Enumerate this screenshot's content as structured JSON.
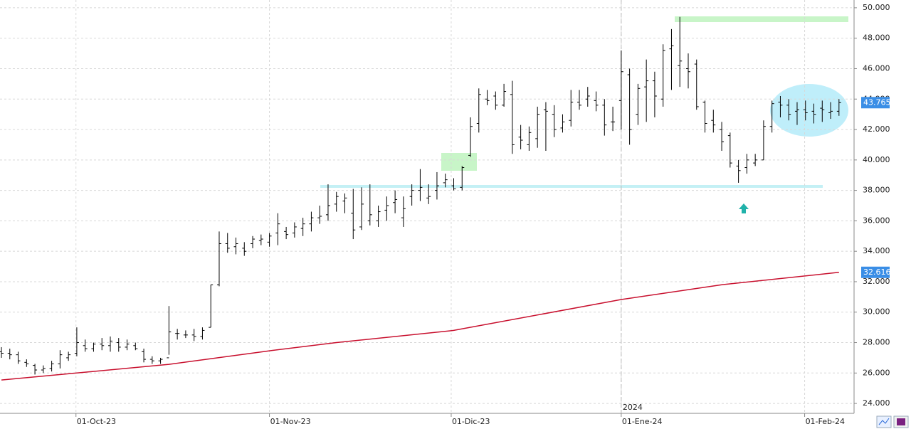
{
  "chart_data": {
    "type": "ohlc",
    "bar_color": "#000000",
    "grid": true,
    "ylim": [
      23.35,
      50.51
    ],
    "yticks": [
      {
        "value": 24,
        "label": "24.000"
      },
      {
        "value": 26,
        "label": "26.000"
      },
      {
        "value": 28,
        "label": "28.000"
      },
      {
        "value": 30,
        "label": "30.000"
      },
      {
        "value": 32,
        "label": "32.000"
      },
      {
        "value": 34,
        "label": "34.000"
      },
      {
        "value": 36,
        "label": "36.000"
      },
      {
        "value": 38,
        "label": "38.000"
      },
      {
        "value": 40,
        "label": "40.000"
      },
      {
        "value": 42,
        "label": "42.000"
      },
      {
        "value": 44,
        "label": "44.000"
      },
      {
        "value": 46,
        "label": "46.000"
      },
      {
        "value": 48,
        "label": "48.000"
      },
      {
        "value": 50,
        "label": "50.000"
      }
    ],
    "xlim": [
      -0.17,
      101.8
    ],
    "xticks": [
      {
        "value": 8.9,
        "label": "01-Oct-23"
      },
      {
        "value": 32,
        "label": "01-Nov-23"
      },
      {
        "value": 53.7,
        "label": "01-Dic-23"
      },
      {
        "value": 74,
        "label": "01-Ene-24"
      },
      {
        "value": 95.9,
        "label": "01-Feb-24"
      }
    ],
    "year_marker": {
      "value": 74,
      "label": "2024"
    },
    "ohlc": {
      "open": [
        27.4,
        27.3,
        27.2,
        26.7,
        26.5,
        26.2,
        26.3,
        26.6,
        27.0,
        27.3,
        27.8,
        27.6,
        27.9,
        27.8,
        28.0,
        27.7,
        27.8,
        27.4,
        26.9,
        26.8,
        27.0,
        28.6,
        28.5,
        28.5,
        28.4,
        29.0,
        31.8,
        34.5,
        34.3,
        34.2,
        34.5,
        34.7,
        34.6,
        35.2,
        35.3,
        35.2,
        35.5,
        35.8,
        36.2,
        36.4,
        37.1,
        37.3,
        36.5,
        35.6,
        36.0,
        36.0,
        36.7,
        37.2,
        36.2,
        37.6,
        38.0,
        37.5,
        38.0,
        38.5,
        38.3,
        38.2,
        40.3,
        42.4,
        44.0,
        44.2,
        43.6,
        44.3,
        41.5,
        41.0,
        41.4,
        43.3,
        43.0,
        42.1,
        42.6,
        43.8,
        44.0,
        43.9,
        43.6,
        42.5,
        43.9,
        45.6,
        43.0,
        44.8,
        45.2,
        44.0,
        47.3,
        46.2,
        46.0,
        46.3,
        43.8,
        42.6,
        42.0,
        41.6,
        39.6,
        39.5,
        39.8,
        40.0,
        42.2,
        43.8,
        43.6,
        43.2,
        43.3,
        43.2,
        43.4,
        43.1,
        43.2
      ],
      "high": [
        27.7,
        27.6,
        27.4,
        26.9,
        26.6,
        26.5,
        26.8,
        27.5,
        27.4,
        29.0,
        28.2,
        28.0,
        28.3,
        28.4,
        28.3,
        28.2,
        28.0,
        27.6,
        27.1,
        27.0,
        30.4,
        28.9,
        28.8,
        28.9,
        29.0,
        31.8,
        35.3,
        35.2,
        34.9,
        34.6,
        35.0,
        35.1,
        35.2,
        36.5,
        35.6,
        35.9,
        36.2,
        36.6,
        37.0,
        38.4,
        37.9,
        37.8,
        38.1,
        38.2,
        38.4,
        37.0,
        37.6,
        38.0,
        37.6,
        38.4,
        39.4,
        38.4,
        39.2,
        39.1,
        38.8,
        39.6,
        42.8,
        44.7,
        44.6,
        44.5,
        45.0,
        45.2,
        42.3,
        42.2,
        43.5,
        43.8,
        43.6,
        43.0,
        44.6,
        44.6,
        44.8,
        44.5,
        44.0,
        43.5,
        47.2,
        46.0,
        45.0,
        46.6,
        45.8,
        47.6,
        48.6,
        49.4,
        47.0,
        46.6,
        43.9,
        43.3,
        42.5,
        41.8,
        40.0,
        40.4,
        40.4,
        42.6,
        43.9,
        44.2,
        44.0,
        43.8,
        43.9,
        43.7,
        43.9,
        43.8,
        44.0
      ],
      "low": [
        27.0,
        26.9,
        26.6,
        26.4,
        25.9,
        26.0,
        26.1,
        26.3,
        26.8,
        27.1,
        27.4,
        27.4,
        27.5,
        27.4,
        27.4,
        27.5,
        27.5,
        26.7,
        26.6,
        26.6,
        27.2,
        28.2,
        28.3,
        28.1,
        28.2,
        29.0,
        31.7,
        33.9,
        33.8,
        33.7,
        34.2,
        34.4,
        34.3,
        34.4,
        34.8,
        34.9,
        35.0,
        35.3,
        35.8,
        36.0,
        36.6,
        36.5,
        34.8,
        35.4,
        35.7,
        35.6,
        36.0,
        36.5,
        35.6,
        37.0,
        37.3,
        37.1,
        37.4,
        38.2,
        38.0,
        38.0,
        40.2,
        41.8,
        43.6,
        43.3,
        43.5,
        40.4,
        40.7,
        40.6,
        40.8,
        40.6,
        41.5,
        41.8,
        42.2,
        43.3,
        43.5,
        43.2,
        41.6,
        41.9,
        42.0,
        41.0,
        42.3,
        42.5,
        42.8,
        43.5,
        44.6,
        44.8,
        44.7,
        43.3,
        41.8,
        41.8,
        40.6,
        39.5,
        38.5,
        39.1,
        39.6,
        40.0,
        41.8,
        42.8,
        42.6,
        42.3,
        42.6,
        42.4,
        42.5,
        42.7,
        42.9
      ],
      "close": [
        27.3,
        27.2,
        26.8,
        26.6,
        26.2,
        26.3,
        26.6,
        27.2,
        27.2,
        28.0,
        27.6,
        27.9,
        27.8,
        28.1,
        27.7,
        27.9,
        27.6,
        26.9,
        26.8,
        26.9,
        28.7,
        28.6,
        28.5,
        28.4,
        28.8,
        31.8,
        34.5,
        34.2,
        34.5,
        34.0,
        34.8,
        34.8,
        35.0,
        35.8,
        35.1,
        35.6,
        35.8,
        36.2,
        36.3,
        37.0,
        37.6,
        37.5,
        35.4,
        37.1,
        36.4,
        36.6,
        37.0,
        37.4,
        36.8,
        38.0,
        38.2,
        37.6,
        38.3,
        38.7,
        38.1,
        39.5,
        42.2,
        44.3,
        43.9,
        43.6,
        44.5,
        41.0,
        41.3,
        41.8,
        43.0,
        43.2,
        42.0,
        42.5,
        43.8,
        43.6,
        44.2,
        43.6,
        42.3,
        42.5,
        45.8,
        42.0,
        44.7,
        45.2,
        44.2,
        47.2,
        47.5,
        46.5,
        45.8,
        43.5,
        42.4,
        42.3,
        41.2,
        39.8,
        39.3,
        40.0,
        40.0,
        42.2,
        43.7,
        43.6,
        43.0,
        43.3,
        43.1,
        43.0,
        43.3,
        43.2,
        43.765
      ]
    },
    "ma": {
      "color": "#c8102e",
      "x": [
        0,
        20,
        32,
        40,
        54,
        74,
        86,
        100
      ],
      "values": [
        25.54,
        26.57,
        27.46,
        28.0,
        28.8,
        30.83,
        31.8,
        32.616
      ]
    }
  }
}
